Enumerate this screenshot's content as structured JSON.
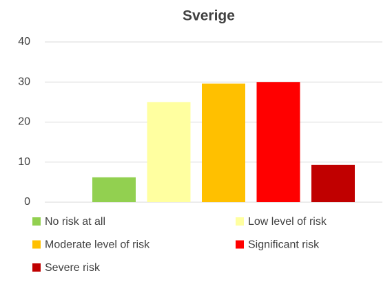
{
  "chart_data": {
    "type": "bar",
    "title": "Sverige",
    "categories": [
      null
    ],
    "series": [
      {
        "name": "No risk at all",
        "color": "#92d050",
        "values": [
          6.2
        ]
      },
      {
        "name": "Low level of risk",
        "color": "#ffffa0",
        "values": [
          25
        ]
      },
      {
        "name": "Moderate level of risk",
        "color": "#ffc000",
        "values": [
          29.6
        ]
      },
      {
        "name": "Significant risk",
        "color": "#ff0000",
        "values": [
          30
        ]
      },
      {
        "name": "Severe risk",
        "color": "#c00000",
        "values": [
          9.3
        ]
      }
    ],
    "ylim": [
      0,
      40
    ],
    "yticks": [
      0,
      10,
      20,
      30,
      40
    ],
    "grid": true,
    "legend": "bottom"
  }
}
